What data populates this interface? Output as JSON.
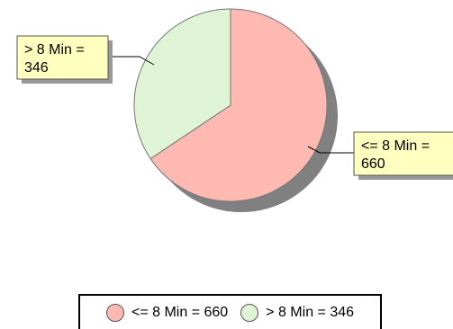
{
  "chart_data": {
    "type": "pie",
    "title": "",
    "slices": [
      {
        "label": "<= 8 Min",
        "value": 660,
        "color": "#ffb9b3",
        "callout_line1": "<= 8 Min =",
        "callout_line2": "660",
        "legend_text": "<= 8 Min = 660"
      },
      {
        "label": "> 8 Min",
        "value": 346,
        "color": "#dff3d5",
        "callout_line1": "> 8 Min =",
        "callout_line2": "346",
        "legend_text": "> 8 Min = 346"
      }
    ],
    "legend_placement": "bottom",
    "shadow_color": "#808080",
    "callout_color": "#ffffc0"
  }
}
